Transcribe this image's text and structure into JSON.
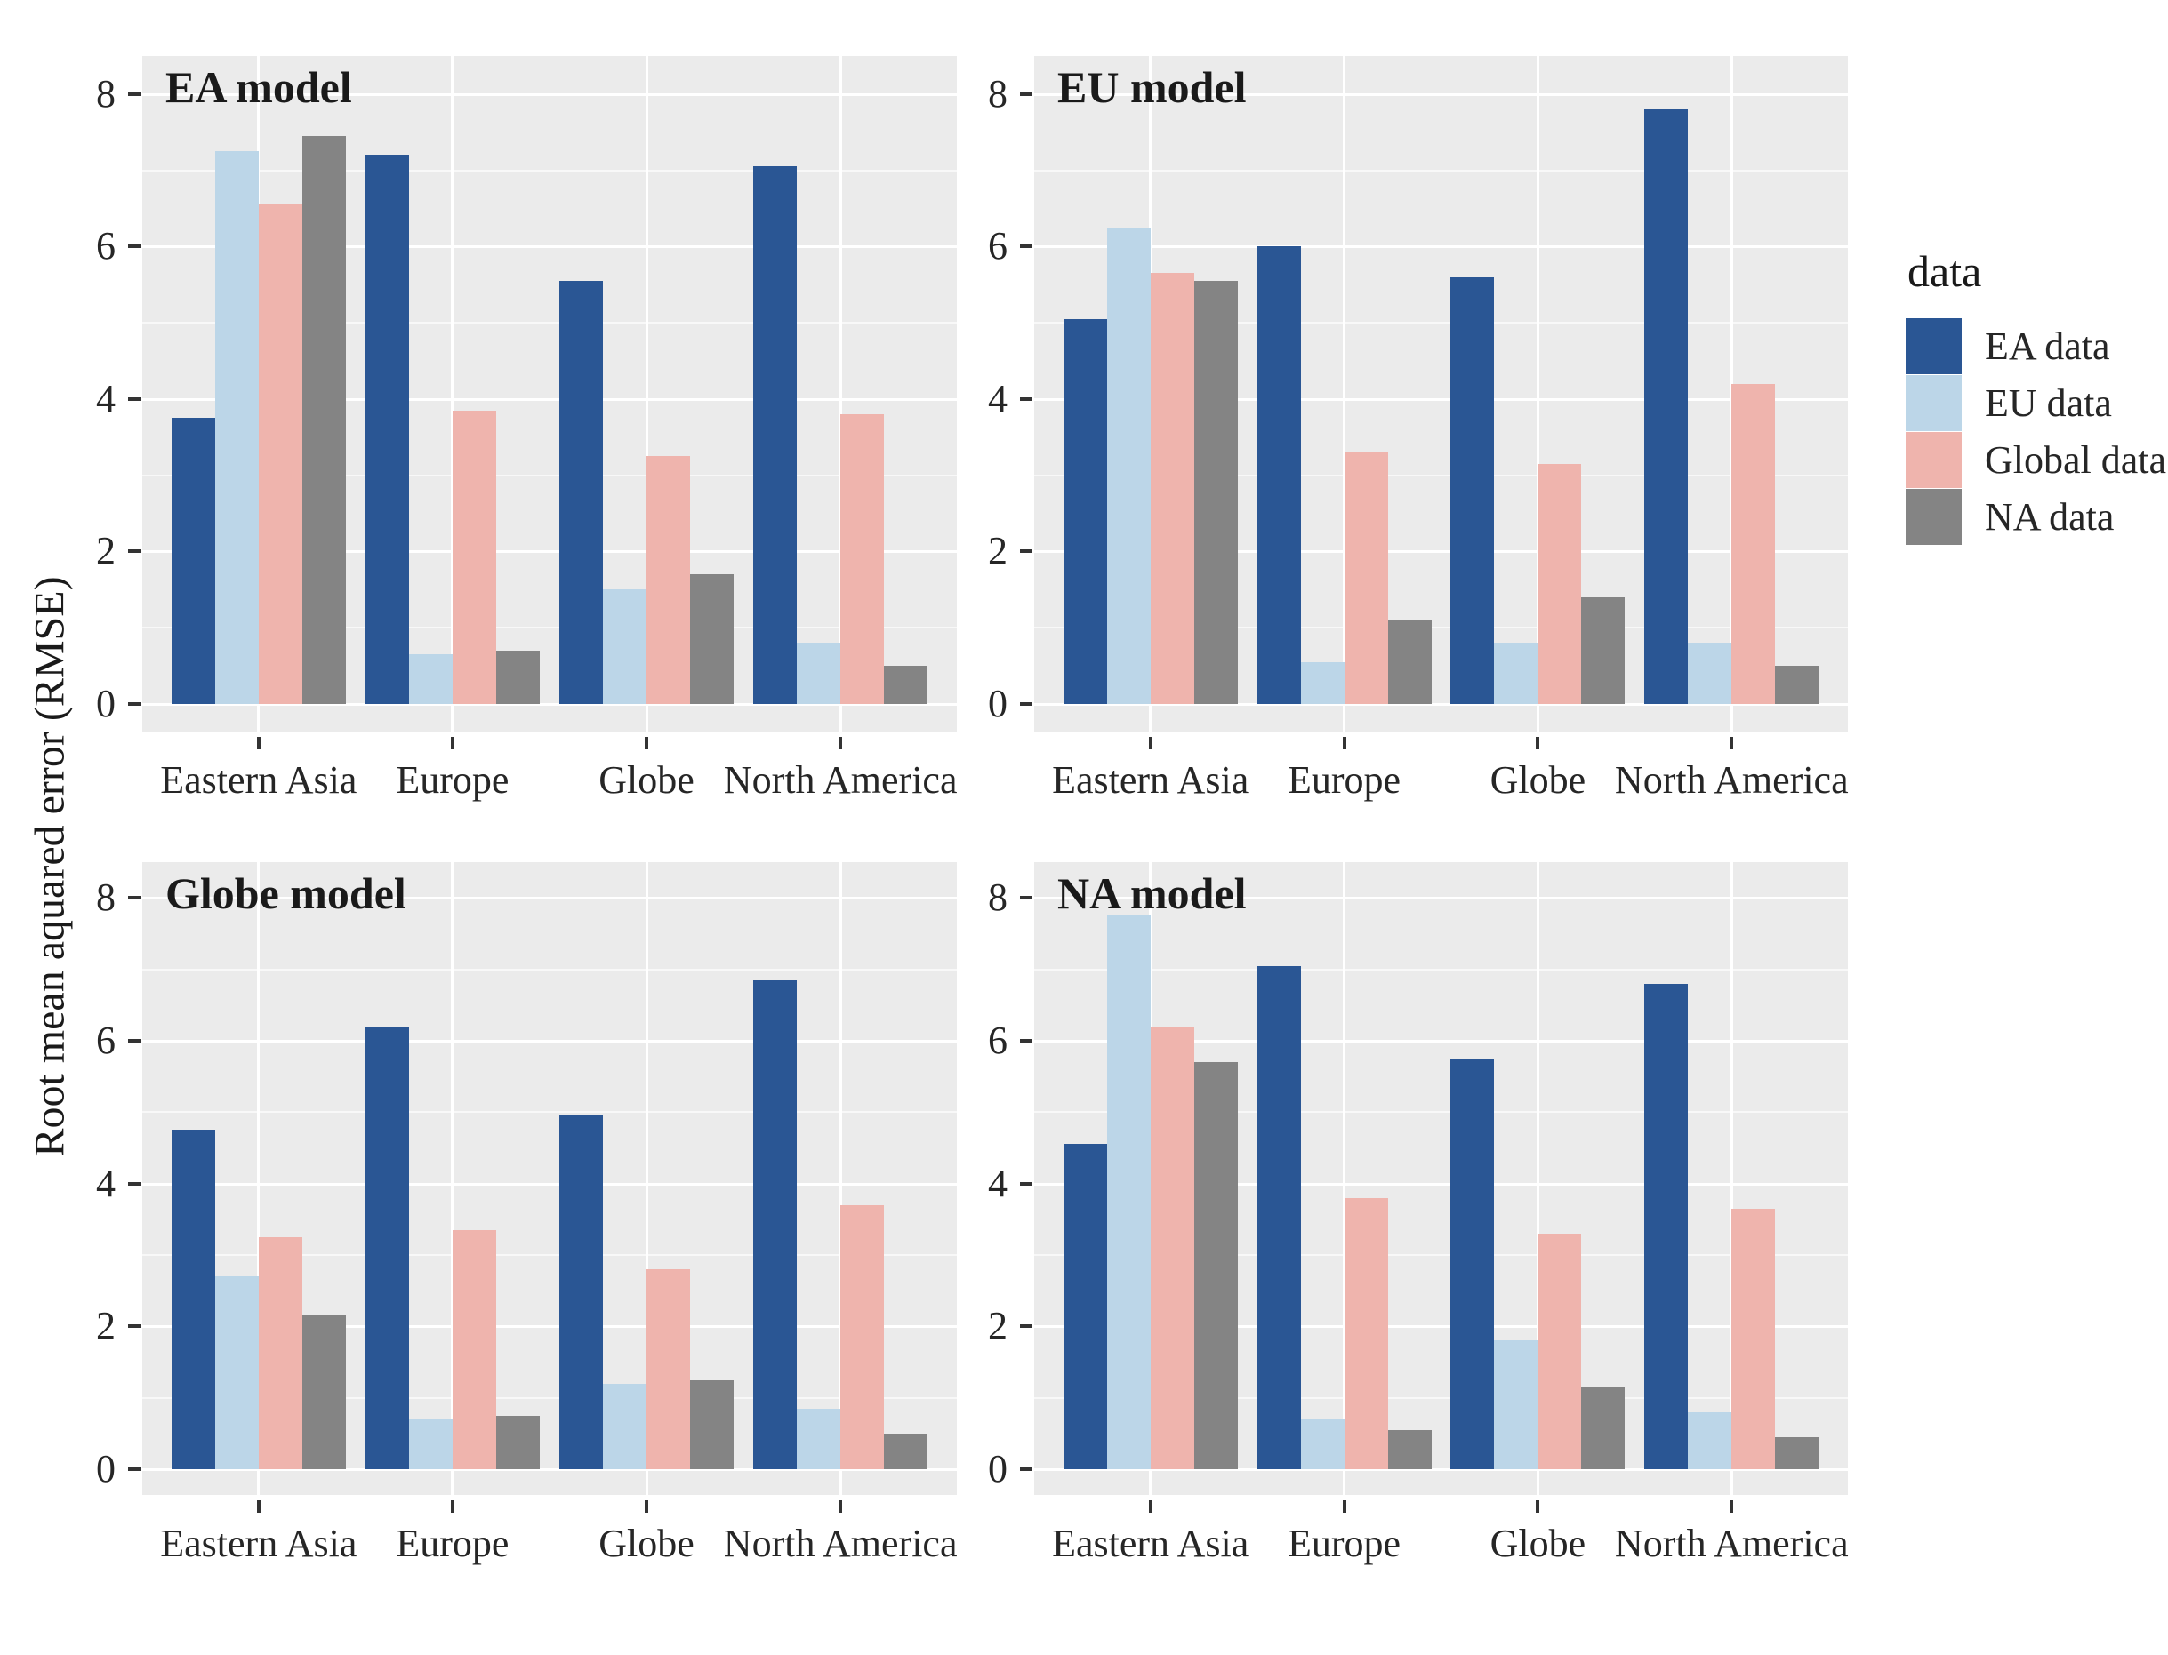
{
  "figure": {
    "y_axis_label": "Root mean aquared error (RMSE)",
    "background": "#FFFFFF",
    "panel_background": "#EBEBEB",
    "gridline_color": "#FFFFFF",
    "text_color": "#262626",
    "series_colors": {
      "EA data": "#2A5694",
      "EU data": "#BCD6E8",
      "Global data": "#EFB4AD",
      "NA data": "#848484"
    }
  },
  "legend": {
    "title": "data",
    "position": "right",
    "entries": [
      {
        "label": "EA data",
        "color": "#2A5694"
      },
      {
        "label": "EU data",
        "color": "#BCD6E8"
      },
      {
        "label": "Global data",
        "color": "#EFB4AD"
      },
      {
        "label": "NA data",
        "color": "#848484"
      }
    ]
  },
  "chart_data": [
    {
      "type": "bar",
      "title": "EA model",
      "categories": [
        "Eastern Asia",
        "Europe",
        "Globe",
        "North America"
      ],
      "series": [
        {
          "name": "EA data",
          "color": "#2A5694",
          "values": [
            3.75,
            7.2,
            5.55,
            7.05
          ]
        },
        {
          "name": "EU data",
          "color": "#BCD6E8",
          "values": [
            7.25,
            0.65,
            1.5,
            0.8
          ]
        },
        {
          "name": "Global data",
          "color": "#EFB4AD",
          "values": [
            6.55,
            3.85,
            3.25,
            3.8
          ]
        },
        {
          "name": "NA data",
          "color": "#848484",
          "values": [
            7.45,
            0.7,
            1.7,
            0.5
          ]
        }
      ],
      "xlabel": "",
      "ylabel": "Root mean aquared error (RMSE)",
      "ylim": [
        -0.4,
        8.5
      ],
      "yticks": [
        0,
        2,
        4,
        6,
        8
      ],
      "grid": true,
      "legend_position": "right"
    },
    {
      "type": "bar",
      "title": "EU model",
      "categories": [
        "Eastern Asia",
        "Europe",
        "Globe",
        "North America"
      ],
      "series": [
        {
          "name": "EA data",
          "color": "#2A5694",
          "values": [
            5.05,
            6.0,
            5.6,
            7.8
          ]
        },
        {
          "name": "EU data",
          "color": "#BCD6E8",
          "values": [
            6.25,
            0.55,
            0.8,
            0.8
          ]
        },
        {
          "name": "Global data",
          "color": "#EFB4AD",
          "values": [
            5.65,
            3.3,
            3.15,
            4.2
          ]
        },
        {
          "name": "NA data",
          "color": "#848484",
          "values": [
            5.55,
            1.1,
            1.4,
            0.5
          ]
        }
      ],
      "xlabel": "",
      "ylabel": "Root mean aquared error (RMSE)",
      "ylim": [
        -0.4,
        8.5
      ],
      "yticks": [
        0,
        2,
        4,
        6,
        8
      ],
      "grid": true,
      "legend_position": "right"
    },
    {
      "type": "bar",
      "title": "Globe model",
      "categories": [
        "Eastern Asia",
        "Europe",
        "Globe",
        "North America"
      ],
      "series": [
        {
          "name": "EA data",
          "color": "#2A5694",
          "values": [
            4.75,
            6.2,
            4.95,
            6.85
          ]
        },
        {
          "name": "EU data",
          "color": "#BCD6E8",
          "values": [
            2.7,
            0.7,
            1.2,
            0.85
          ]
        },
        {
          "name": "Global data",
          "color": "#EFB4AD",
          "values": [
            3.25,
            3.35,
            2.8,
            3.7
          ]
        },
        {
          "name": "NA data",
          "color": "#848484",
          "values": [
            2.15,
            0.75,
            1.25,
            0.5
          ]
        }
      ],
      "xlabel": "",
      "ylabel": "Root mean aquared error (RMSE)",
      "ylim": [
        -0.4,
        8.5
      ],
      "yticks": [
        0,
        2,
        4,
        6,
        8
      ],
      "grid": true,
      "legend_position": "right"
    },
    {
      "type": "bar",
      "title": "NA model",
      "categories": [
        "Eastern Asia",
        "Europe",
        "Globe",
        "North America"
      ],
      "series": [
        {
          "name": "EA data",
          "color": "#2A5694",
          "values": [
            4.55,
            7.05,
            5.75,
            6.8
          ]
        },
        {
          "name": "EU data",
          "color": "#BCD6E8",
          "values": [
            7.75,
            0.7,
            1.8,
            0.8
          ]
        },
        {
          "name": "Global data",
          "color": "#EFB4AD",
          "values": [
            6.2,
            3.8,
            3.3,
            3.65
          ]
        },
        {
          "name": "NA data",
          "color": "#848484",
          "values": [
            5.7,
            0.55,
            1.15,
            0.45
          ]
        }
      ],
      "xlabel": "",
      "ylabel": "Root mean aquared error (RMSE)",
      "ylim": [
        -0.4,
        8.5
      ],
      "yticks": [
        0,
        2,
        4,
        6,
        8
      ],
      "grid": true,
      "legend_position": "right"
    }
  ]
}
